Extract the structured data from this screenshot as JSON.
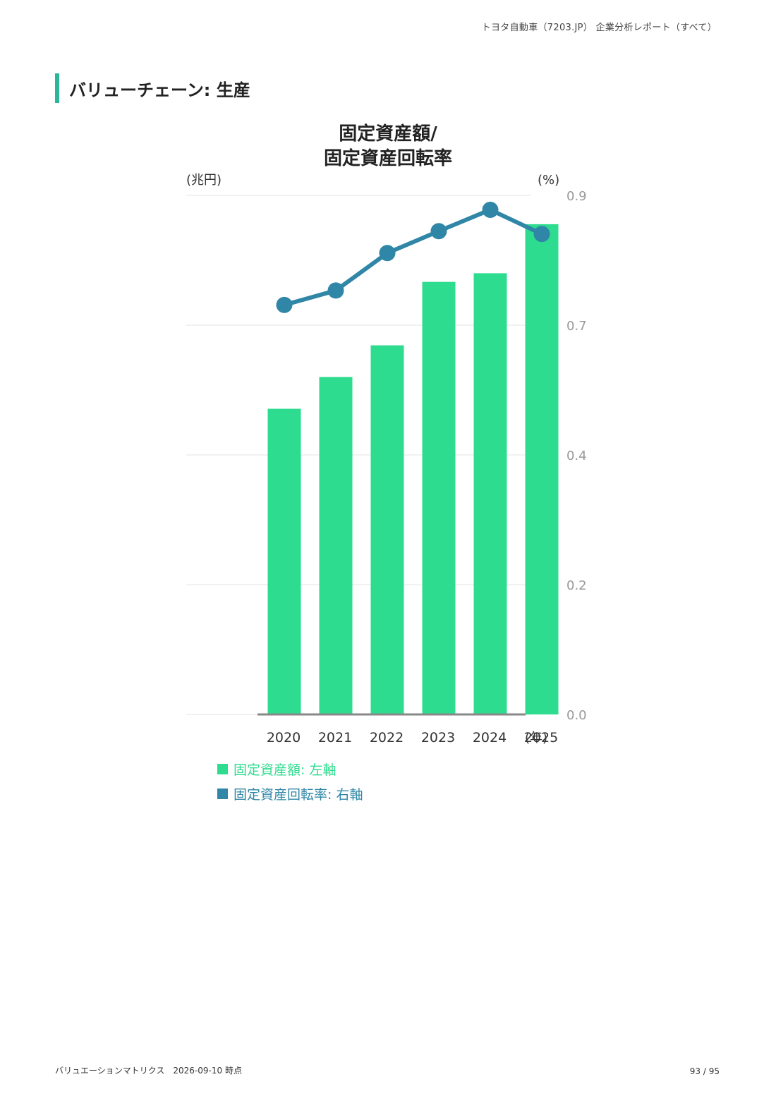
{
  "header": {
    "report_title": "トヨタ自動車（7203.JP） 企業分析レポート（すべて）"
  },
  "section": {
    "title": "バリューチェーン: 生産"
  },
  "chart_data": {
    "type": "bar+line",
    "title_line1": "固定資産額/",
    "title_line2": "固定資産回転率",
    "left_unit": "(兆円)",
    "right_unit": "(%)",
    "x_unit": "(年)",
    "categories": [
      "2020",
      "2021",
      "2022",
      "2023",
      "2024",
      "2025"
    ],
    "right_ticks": [
      "0.0",
      "0.2",
      "0.4",
      "0.7",
      "0.9"
    ],
    "right_tick_values": [
      0.0,
      0.225,
      0.45,
      0.675,
      0.9
    ],
    "right_axis_max": 0.9,
    "series": [
      {
        "name": "固定資産額: 左軸",
        "type": "bar",
        "axis": "left",
        "values": [
          0.53,
          0.585,
          0.64,
          0.75,
          0.765,
          0.85
        ],
        "color": "#2edc8f"
      },
      {
        "name": "固定資産回転率: 右軸",
        "type": "line",
        "axis": "right",
        "values": [
          0.71,
          0.735,
          0.8,
          0.838,
          0.875,
          0.833
        ],
        "color": "#2f86a6"
      }
    ],
    "grid": true,
    "legend_position": "bottom-left"
  },
  "colors": {
    "accent": "#2bb59a",
    "bar": "#2edc8f",
    "line": "#2f86a6",
    "tick": "#999999"
  },
  "footer": {
    "left": "バリュエーションマトリクス　2026-09-10 時点",
    "page": "93 / 95"
  }
}
